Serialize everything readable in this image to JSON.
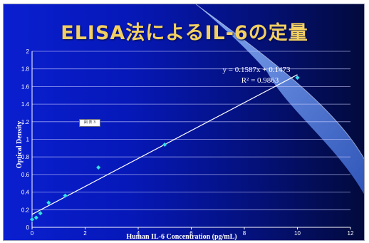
{
  "slide": {
    "title": "ELISA法によるIL-6の定量",
    "stamp_text": "図 表 3"
  },
  "chart_data": {
    "type": "scatter",
    "title": "",
    "xlabel": "Human IL-6 Concentration (pg/mL)",
    "ylabel": "Optical Density",
    "xlim": [
      0,
      12
    ],
    "ylim": [
      0,
      2
    ],
    "x_ticks": [
      0,
      2,
      4,
      6,
      8,
      10,
      12
    ],
    "y_ticks": [
      0,
      0.2,
      0.4,
      0.6,
      0.8,
      1,
      1.2,
      1.4,
      1.6,
      1.8,
      2
    ],
    "grid": "horizontal",
    "points": [
      {
        "x": 0,
        "y": 0.09
      },
      {
        "x": 0.156,
        "y": 0.11
      },
      {
        "x": 0.3125,
        "y": 0.16
      },
      {
        "x": 0.625,
        "y": 0.28
      },
      {
        "x": 1.25,
        "y": 0.36
      },
      {
        "x": 2.5,
        "y": 0.68
      },
      {
        "x": 5,
        "y": 0.94
      },
      {
        "x": 10,
        "y": 1.7
      }
    ],
    "trendline": {
      "slope": 0.1587,
      "intercept": 0.1473,
      "x_range": [
        0,
        10
      ]
    },
    "equation_text": "y = 0.1587x + 0.1473",
    "r2_text": "R² = 0.9863",
    "colors": {
      "points": "#33e0f0",
      "line": "#ffffff",
      "grid": "#c8ccff",
      "title": "#f2cf63"
    }
  }
}
